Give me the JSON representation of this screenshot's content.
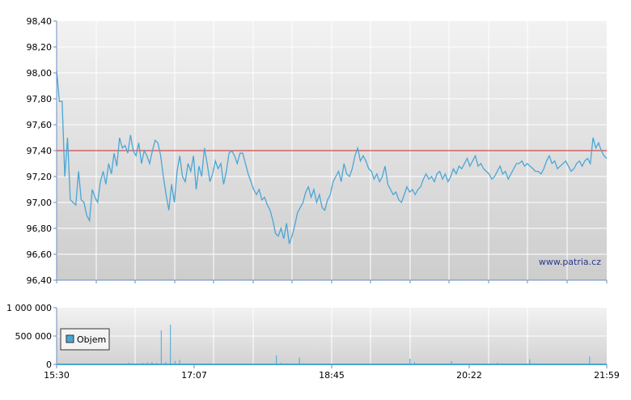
{
  "chart_data": [
    {
      "type": "line",
      "ylim": [
        96.4,
        98.4
      ],
      "y_ticks": [
        "98,40",
        "98,20",
        "98,00",
        "97,80",
        "97,60",
        "97,40",
        "97,20",
        "97,00",
        "96,80",
        "96,60",
        "96,40"
      ],
      "y_tick_values": [
        98.4,
        98.2,
        98.0,
        97.8,
        97.6,
        97.4,
        97.2,
        97.0,
        96.8,
        96.6,
        96.4
      ],
      "reference_line": 97.4,
      "grid": true,
      "watermark": "www.patria.cz",
      "colors": {
        "line": "#4aa6d6",
        "reference": "#d32020",
        "grid": "#ffffff"
      },
      "series": [
        {
          "values": [
            98.02,
            97.78,
            97.78,
            97.2,
            97.5,
            97.02,
            97.0,
            96.98,
            97.24,
            97.02,
            97.0,
            96.9,
            96.86,
            97.1,
            97.04,
            97.0,
            97.16,
            97.24,
            97.14,
            97.3,
            97.22,
            97.38,
            97.28,
            97.5,
            97.42,
            97.44,
            97.38,
            97.52,
            97.4,
            97.36,
            97.46,
            97.3,
            97.4,
            97.36,
            97.3,
            97.4,
            97.48,
            97.46,
            97.36,
            97.2,
            97.06,
            96.94,
            97.14,
            97.0,
            97.24,
            97.36,
            97.2,
            97.16,
            97.3,
            97.24,
            97.36,
            97.1,
            97.28,
            97.2,
            97.42,
            97.3,
            97.16,
            97.22,
            97.32,
            97.26,
            97.3,
            97.14,
            97.24,
            97.38,
            97.4,
            97.36,
            97.3,
            97.38,
            97.38,
            97.3,
            97.22,
            97.16,
            97.1,
            97.06,
            97.1,
            97.02,
            97.04,
            96.98,
            96.94,
            96.86,
            96.76,
            96.74,
            96.8,
            96.72,
            96.84,
            96.68,
            96.74,
            96.82,
            96.92,
            96.96,
            97.0,
            97.08,
            97.12,
            97.04,
            97.1,
            97.0,
            97.06,
            96.96,
            96.94,
            97.02,
            97.06,
            97.16,
            97.2,
            97.24,
            97.16,
            97.3,
            97.22,
            97.2,
            97.26,
            97.36,
            97.42,
            97.32,
            97.36,
            97.32,
            97.26,
            97.24,
            97.18,
            97.22,
            97.16,
            97.2,
            97.28,
            97.14,
            97.1,
            97.06,
            97.08,
            97.02,
            97.0,
            97.06,
            97.12,
            97.08,
            97.1,
            97.06,
            97.1,
            97.12,
            97.18,
            97.22,
            97.18,
            97.2,
            97.16,
            97.22,
            97.24,
            97.18,
            97.22,
            97.16,
            97.2,
            97.26,
            97.22,
            97.28,
            97.26,
            97.3,
            97.34,
            97.28,
            97.32,
            97.36,
            97.28,
            97.3,
            97.26,
            97.24,
            97.22,
            97.18,
            97.2,
            97.24,
            97.28,
            97.22,
            97.24,
            97.18,
            97.22,
            97.26,
            97.3,
            97.3,
            97.32,
            97.28,
            97.3,
            97.28,
            97.26,
            97.24,
            97.24,
            97.22,
            97.26,
            97.32,
            97.36,
            97.3,
            97.32,
            97.26,
            97.28,
            97.3,
            97.32,
            97.28,
            97.24,
            97.26,
            97.3,
            97.32,
            97.28,
            97.32,
            97.34,
            97.3,
            97.5,
            97.42,
            97.46,
            97.4,
            97.36,
            97.34
          ]
        }
      ]
    },
    {
      "type": "bar",
      "ylim": [
        0,
        1000000
      ],
      "y_ticks": [
        "1 000 000",
        "500 000",
        "0"
      ],
      "y_tick_values": [
        1000000,
        500000,
        0
      ],
      "x_ticks": [
        "15:30",
        "17:07",
        "18:45",
        "20:22",
        "21:59"
      ],
      "legend": "Objem",
      "colors": {
        "bar": "#4aa6d6"
      },
      "series": [
        {
          "name": "Objem",
          "values": [
            20000,
            8000,
            5000,
            12000,
            6000,
            4000,
            15000,
            8000,
            5000,
            6000,
            3000,
            9000,
            4000,
            5000,
            7000,
            30000,
            20000,
            18000,
            25000,
            35000,
            40000,
            30000,
            600000,
            40000,
            700000,
            60000,
            80000,
            20000,
            10000,
            8000,
            12000,
            7000,
            5000,
            9000,
            6000,
            4000,
            7000,
            8000,
            5000,
            6000,
            4000,
            5000,
            3000,
            6000,
            4000,
            5000,
            7000,
            160000,
            30000,
            20000,
            15000,
            10000,
            120000,
            20000,
            10000,
            8000,
            6000,
            5000,
            9000,
            7000,
            5000,
            6000,
            4000,
            5000,
            8000,
            6000,
            4000,
            5000,
            7000,
            5000,
            6000,
            4000,
            5000,
            6000,
            7000,
            5000,
            100000,
            40000,
            10000,
            8000,
            6000,
            5000,
            4000,
            6000,
            5000,
            60000,
            8000,
            7000,
            5000,
            6000,
            4000,
            5000,
            6000,
            4000,
            5000,
            30000,
            20000,
            7000,
            5000,
            6000,
            4000,
            5000,
            90000,
            20000,
            10000,
            7000,
            6000,
            5000,
            4000,
            6000,
            5000,
            8000,
            6000,
            7000,
            5000,
            140000,
            20000,
            5000,
            6000
          ]
        }
      ]
    }
  ]
}
